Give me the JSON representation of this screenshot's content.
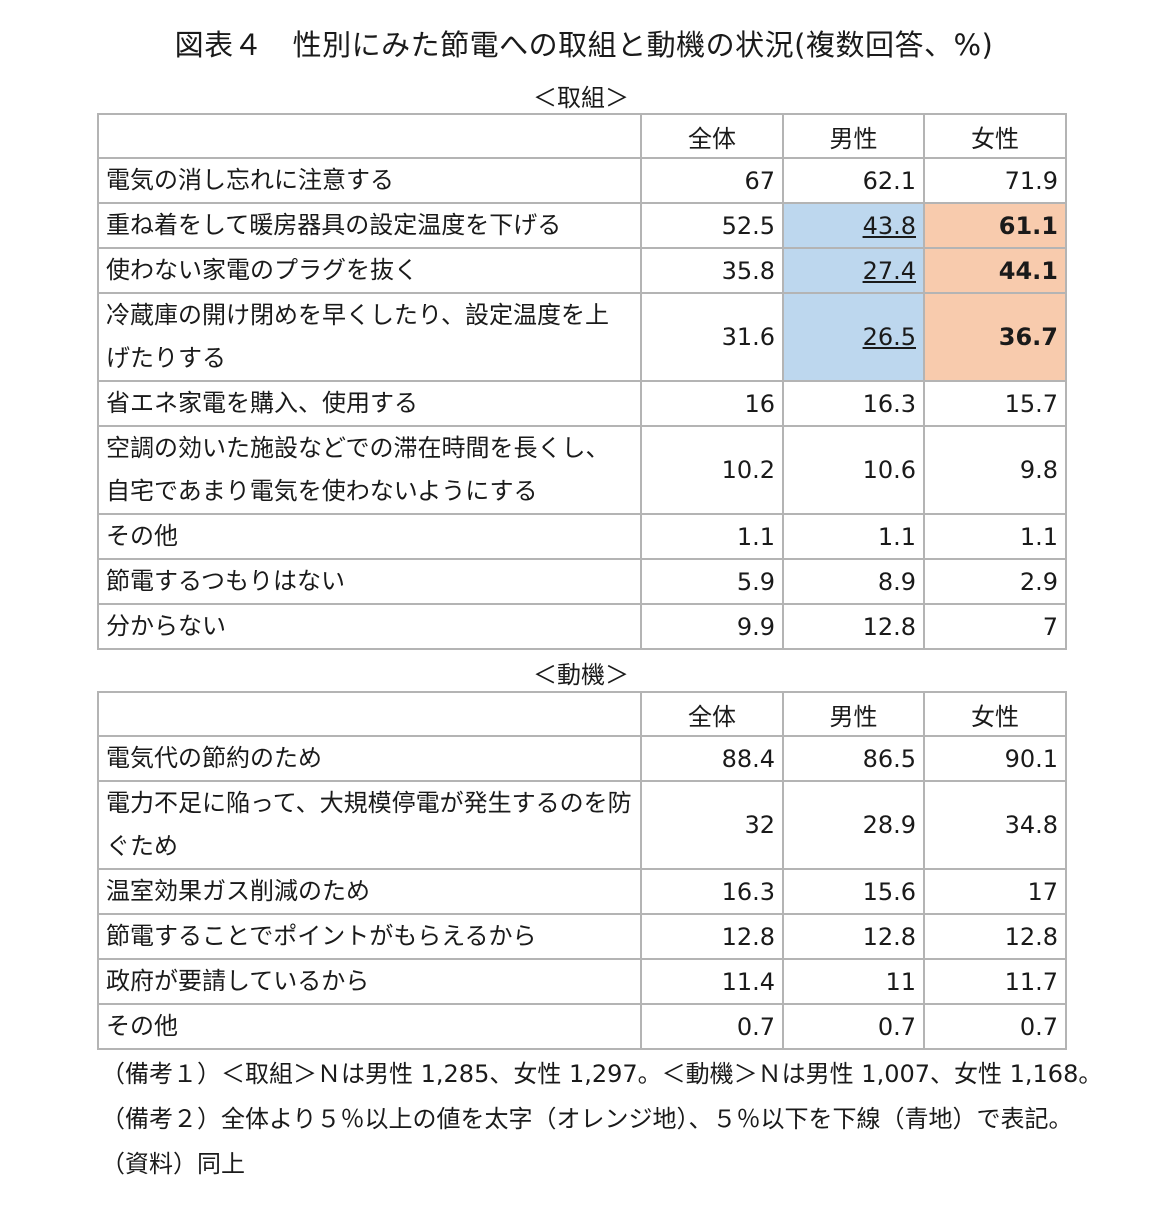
{
  "title": "図表４　性別にみた節電への取組と動機の状況(複数回答、%)",
  "table1": {
    "label": "＜取組＞",
    "headers": [
      "全体",
      "男性",
      "女性"
    ],
    "rows": [
      {
        "label": "電気の消し忘れに注意する",
        "all": "67",
        "male": "62.1",
        "female": "71.9"
      },
      {
        "label": "重ね着をして暖房器具の設定温度を下げる",
        "all": "52.5",
        "male": "43.8",
        "female": "61.1"
      },
      {
        "label": "使わない家電のプラグを抜く",
        "all": "35.8",
        "male": "27.4",
        "female": "44.1"
      },
      {
        "label": "冷蔵庫の開け閉めを早くしたり、設定温度を上げたりする",
        "all": "31.6",
        "male": "26.5",
        "female": "36.7"
      },
      {
        "label": "省エネ家電を購入、使用する",
        "all": "16",
        "male": "16.3",
        "female": "15.7"
      },
      {
        "label": "空調の効いた施設などでの滞在時間を長くし、自宅であまり電気を使わないようにする",
        "all": "10.2",
        "male": "10.6",
        "female": "9.8"
      },
      {
        "label": "その他",
        "all": "1.1",
        "male": "1.1",
        "female": "1.1"
      },
      {
        "label": "節電するつもりはない",
        "all": "5.9",
        "male": "8.9",
        "female": "2.9"
      },
      {
        "label": "分からない",
        "all": "9.9",
        "male": "12.8",
        "female": "7"
      }
    ]
  },
  "table2": {
    "label": "＜動機＞",
    "headers": [
      "全体",
      "男性",
      "女性"
    ],
    "rows": [
      {
        "label": "電気代の節約のため",
        "all": "88.4",
        "male": "86.5",
        "female": "90.1"
      },
      {
        "label": "電力不足に陥って、大規模停電が発生するのを防ぐため",
        "all": "32",
        "male": "28.9",
        "female": "34.8"
      },
      {
        "label": "温室効果ガス削減のため",
        "all": "16.3",
        "male": "15.6",
        "female": "17"
      },
      {
        "label": "節電することでポイントがもらえるから",
        "all": "12.8",
        "male": "12.8",
        "female": "12.8"
      },
      {
        "label": "政府が要請しているから",
        "all": "11.4",
        "male": "11",
        "female": "11.7"
      },
      {
        "label": "その他",
        "all": "0.7",
        "male": "0.7",
        "female": "0.7"
      }
    ]
  },
  "notes": [
    "（備考１）＜取組＞Ｎは男性 1,285、女性 1,297。＜動機＞Ｎは男性 1,007、女性 1,168。",
    "（備考２）全体より５％以上の値を太字（オレンジ地）、５％以下を下線（青地）で表記。",
    "（資料）同上"
  ],
  "colors": {
    "highlight_low": "#bdd7ee",
    "highlight_high": "#f8cbad",
    "border": "#b4b4b4"
  }
}
